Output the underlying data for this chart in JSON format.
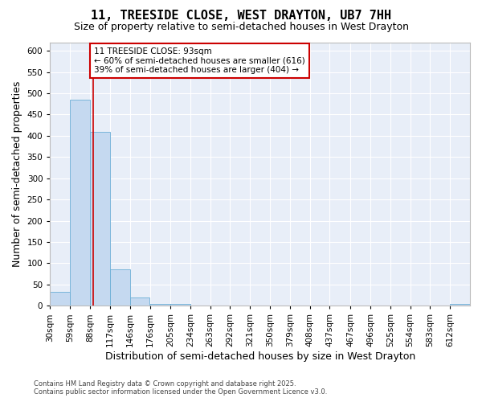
{
  "title_line1": "11, TREESIDE CLOSE, WEST DRAYTON, UB7 7HH",
  "title_line2": "Size of property relative to semi-detached houses in West Drayton",
  "xlabel": "Distribution of semi-detached houses by size in West Drayton",
  "ylabel": "Number of semi-detached properties",
  "bin_edges": [
    30,
    59,
    88,
    117,
    146,
    176,
    205,
    234,
    263,
    292,
    321,
    350,
    379,
    408,
    437,
    467,
    496,
    525,
    554,
    583,
    612
  ],
  "bar_heights": [
    32,
    485,
    410,
    86,
    20,
    5,
    5,
    0,
    0,
    0,
    0,
    0,
    0,
    0,
    0,
    0,
    0,
    0,
    0,
    0,
    5
  ],
  "bar_color": "#c5d9f0",
  "bar_edge_color": "#6baed6",
  "property_size": 93,
  "vline_color": "#cc0000",
  "annotation_text": "11 TREESIDE CLOSE: 93sqm\n← 60% of semi-detached houses are smaller (616)\n39% of semi-detached houses are larger (404) →",
  "annotation_box_color": "#ffffff",
  "annotation_box_edge": "#cc0000",
  "ylim": [
    0,
    620
  ],
  "yticks": [
    0,
    50,
    100,
    150,
    200,
    250,
    300,
    350,
    400,
    450,
    500,
    550,
    600
  ],
  "xlim_min": 30,
  "xlim_max": 641,
  "background_color": "#e8eef8",
  "grid_color": "#ffffff",
  "footer_text": "Contains HM Land Registry data © Crown copyright and database right 2025.\nContains public sector information licensed under the Open Government Licence v3.0.",
  "tick_label_fontsize": 7.5,
  "axis_label_fontsize": 9,
  "title1_fontsize": 11,
  "title2_fontsize": 9,
  "annotation_fontsize": 7.5
}
